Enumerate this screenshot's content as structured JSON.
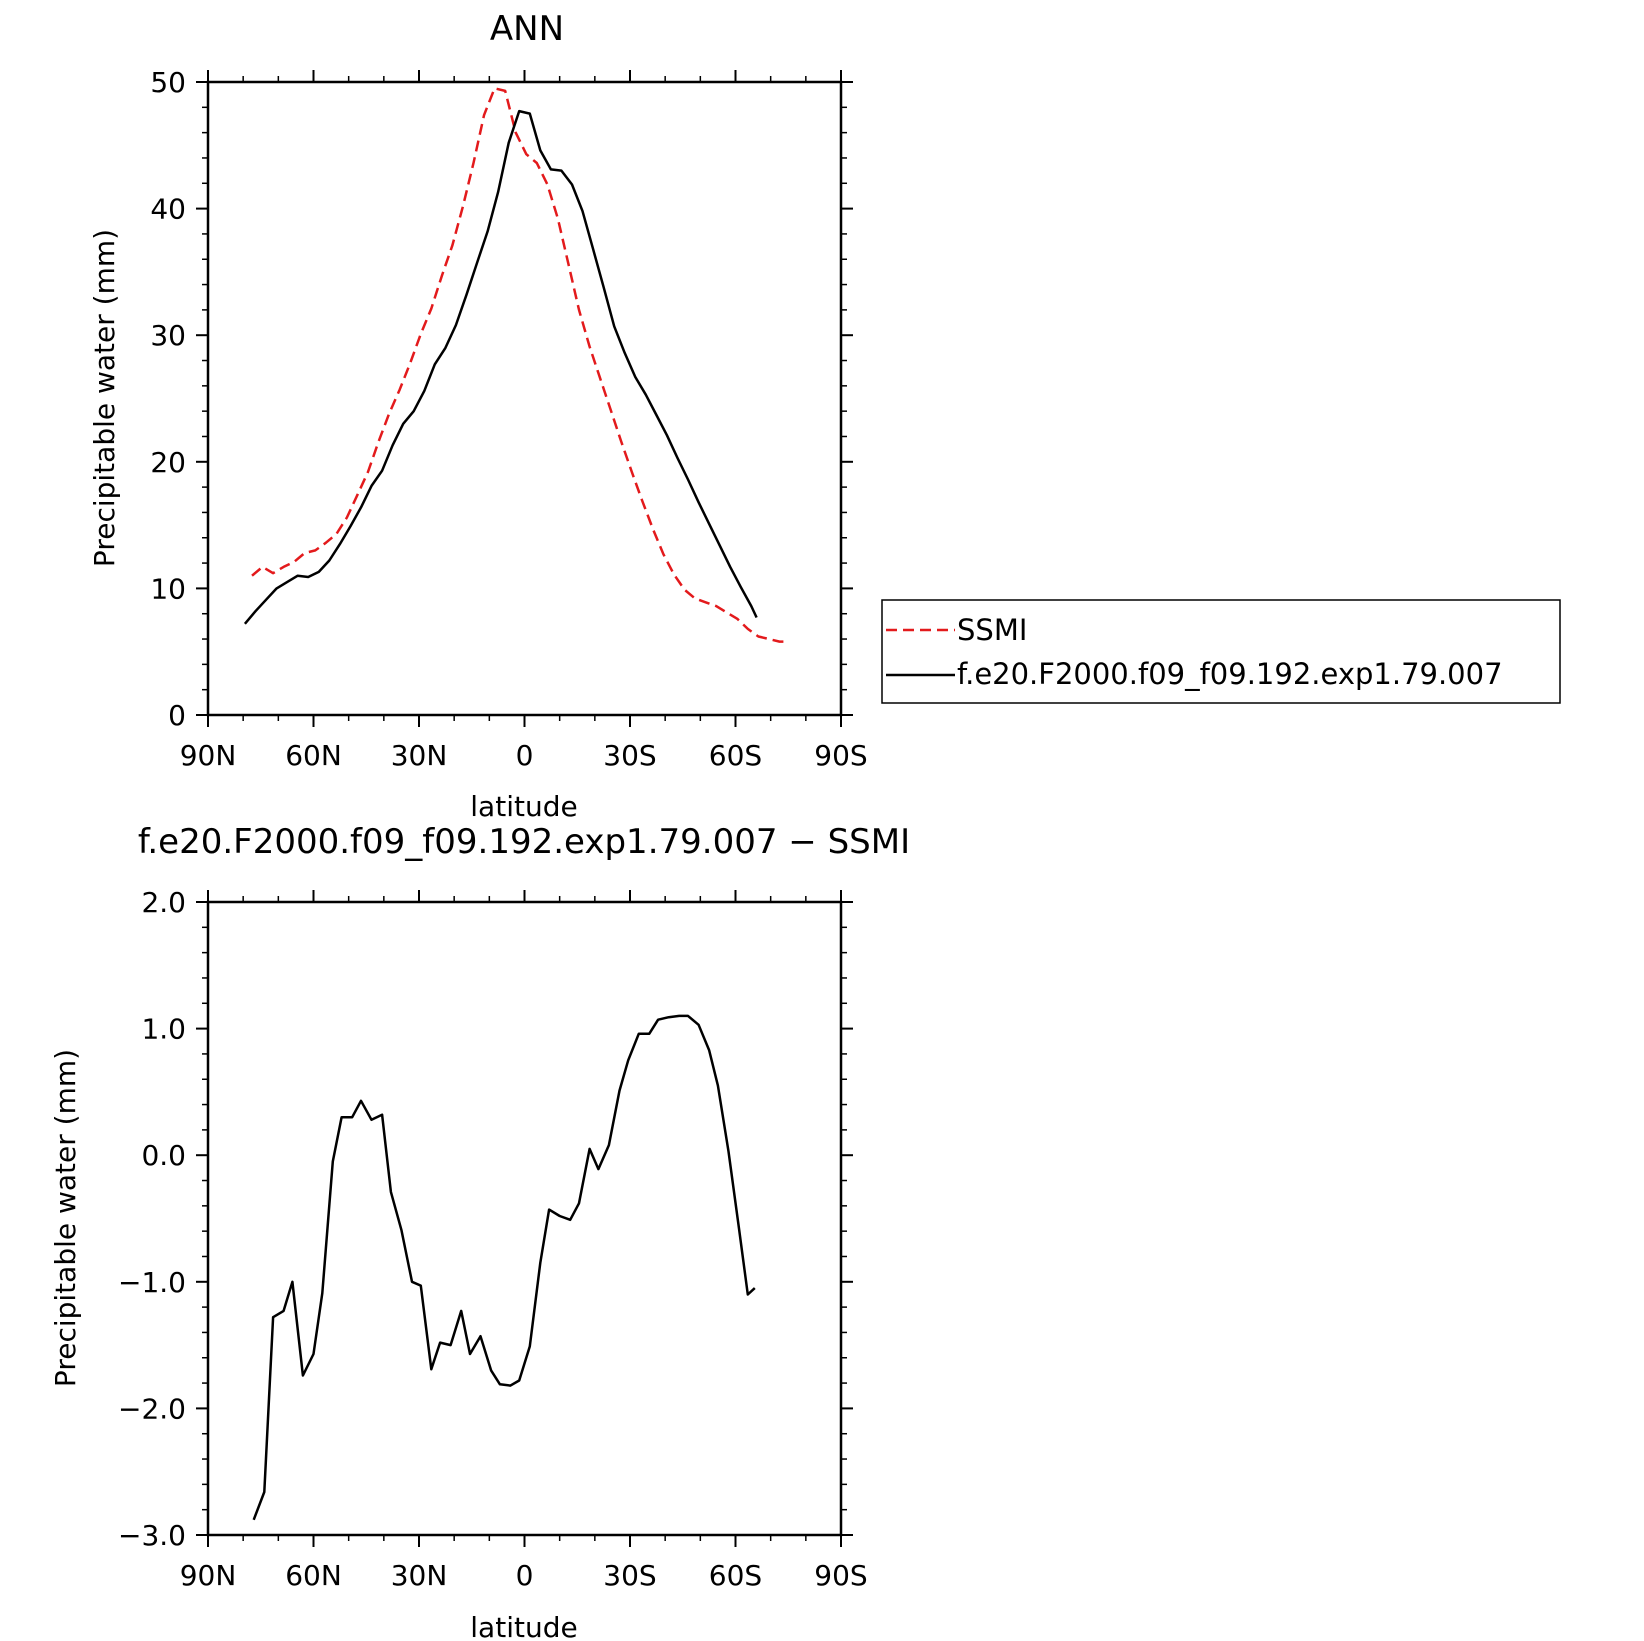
{
  "chart_data": [
    {
      "type": "line",
      "title": "ANN",
      "xlabel": "latitude",
      "ylabel": "Precipitable water (mm)",
      "xlim": [
        90,
        -90
      ],
      "ylim": [
        0,
        50
      ],
      "xticks": [
        90,
        60,
        30,
        0,
        -30,
        -60,
        -90
      ],
      "xtick_labels": [
        "90N",
        "60N",
        "30N",
        "0",
        "30S",
        "60S",
        "90S"
      ],
      "yticks": [
        0,
        10,
        20,
        30,
        40,
        50
      ],
      "ytick_labels": [
        "0",
        "10",
        "20",
        "30",
        "40",
        "50"
      ],
      "legend_position": "right",
      "series": [
        {
          "name": "SSMI",
          "color": "#e31a1c",
          "style": "dashed",
          "x": [
            77.5,
            74.5,
            71.5,
            68.5,
            65.5,
            62.5,
            59.5,
            56.5,
            53.5,
            50.5,
            47.5,
            44.5,
            41.5,
            38.5,
            35.5,
            32.5,
            29.5,
            26.5,
            23.5,
            20.5,
            17.5,
            14.5,
            11.5,
            8.5,
            5.5,
            2.5,
            -0.5,
            -3.5,
            -6.5,
            -9.5,
            -12.5,
            -15.5,
            -18.5,
            -21.5,
            -24.5,
            -27.5,
            -30.5,
            -33.5,
            -36.5,
            -39.5,
            -42.5,
            -45.5,
            -48.5,
            -51.5,
            -54.5,
            -57.5,
            -60.5,
            -63.5,
            -66.5,
            -69.5,
            -72.5,
            -74.5
          ],
          "y": [
            11.0,
            11.7,
            11.2,
            11.7,
            12.1,
            12.8,
            13.0,
            13.6,
            14.3,
            15.6,
            17.4,
            19.2,
            21.6,
            23.8,
            25.7,
            27.8,
            30.1,
            32.1,
            34.7,
            37.1,
            40.2,
            43.6,
            47.4,
            49.5,
            49.3,
            46.0,
            44.3,
            43.6,
            41.9,
            39.2,
            35.6,
            32.0,
            29.1,
            26.6,
            24.1,
            21.6,
            19.2,
            16.9,
            14.7,
            12.7,
            11.1,
            9.9,
            9.2,
            8.9,
            8.6,
            8.1,
            7.6,
            6.8,
            6.2,
            6.0,
            5.8,
            5.8
          ]
        },
        {
          "name": "f.e20.F2000.f09_f09.192.exp1.79.007",
          "color": "#000000",
          "style": "solid",
          "x": [
            79.5,
            76.5,
            73.5,
            70.5,
            67.5,
            64.5,
            61.5,
            58.5,
            55.5,
            52.5,
            49.5,
            46.5,
            43.5,
            40.5,
            37.5,
            34.5,
            31.5,
            28.5,
            25.5,
            22.5,
            19.5,
            16.5,
            13.5,
            10.5,
            7.5,
            4.5,
            1.5,
            -1.5,
            -4.5,
            -7.5,
            -10.5,
            -13.5,
            -16.5,
            -19.5,
            -22.5,
            -25.5,
            -28.5,
            -31.5,
            -34.5,
            -37.5,
            -40.5,
            -43.5,
            -46.5,
            -49.5,
            -52.5,
            -55.5,
            -58.5,
            -61.5,
            -64.5,
            -66.0
          ],
          "y": [
            7.2,
            8.2,
            9.1,
            10.0,
            10.5,
            11.0,
            10.9,
            11.3,
            12.2,
            13.5,
            14.9,
            16.4,
            18.1,
            19.3,
            21.3,
            23.0,
            24.0,
            25.6,
            27.7,
            29.0,
            30.8,
            33.2,
            35.7,
            38.2,
            41.3,
            45.2,
            47.7,
            47.5,
            44.6,
            43.1,
            43.0,
            41.9,
            39.8,
            36.8,
            33.8,
            30.7,
            28.6,
            26.7,
            25.3,
            23.7,
            22.1,
            20.3,
            18.6,
            16.8,
            15.1,
            13.4,
            11.7,
            10.1,
            8.6,
            7.7
          ]
        }
      ]
    },
    {
      "type": "line",
      "title": "f.e20.F2000.f09_f09.192.exp1.79.007 − SSMI",
      "xlabel": "latitude",
      "ylabel": "Precipitable water (mm)",
      "xlim": [
        90,
        -90
      ],
      "ylim": [
        -3.0,
        2.0
      ],
      "xticks": [
        90,
        60,
        30,
        0,
        -30,
        -60,
        -90
      ],
      "xtick_labels": [
        "90N",
        "60N",
        "30N",
        "0",
        "30S",
        "60S",
        "90S"
      ],
      "yticks": [
        -3.0,
        -2.0,
        -1.0,
        0.0,
        1.0,
        2.0
      ],
      "ytick_labels": [
        "−3.0",
        "−2.0",
        "−1.0",
        "0.0",
        "1.0",
        "2.0"
      ],
      "series": [
        {
          "color": "#000000",
          "style": "solid",
          "x": [
            77.0,
            74.0,
            71.5,
            68.5,
            66.0,
            63.0,
            60.0,
            57.5,
            54.5,
            52.0,
            49.0,
            46.5,
            43.5,
            40.5,
            38.0,
            35.0,
            32.0,
            29.5,
            26.5,
            24.0,
            21.0,
            18.0,
            15.5,
            12.5,
            9.5,
            7.0,
            4.0,
            1.5,
            -1.5,
            -4.5,
            -7.0,
            -10.0,
            -13.0,
            -15.5,
            -18.5,
            -21.0,
            -24.0,
            -27.0,
            -29.5,
            -32.5,
            -35.5,
            -38.0,
            -41.0,
            -44.0,
            -46.5,
            -49.5,
            -52.5,
            -55.0,
            -58.0,
            -61.0,
            -63.5,
            -65.5
          ],
          "y": [
            -2.88,
            -2.66,
            -1.28,
            -1.23,
            -1.0,
            -1.74,
            -1.57,
            -1.09,
            -0.05,
            0.3,
            0.3,
            0.43,
            0.28,
            0.32,
            -0.29,
            -0.59,
            -1.0,
            -1.03,
            -1.69,
            -1.48,
            -1.5,
            -1.23,
            -1.57,
            -1.43,
            -1.7,
            -1.81,
            -1.82,
            -1.78,
            -1.51,
            -0.85,
            -0.43,
            -0.48,
            -0.51,
            -0.38,
            0.05,
            -0.11,
            0.08,
            0.51,
            0.75,
            0.96,
            0.96,
            1.07,
            1.09,
            1.1,
            1.1,
            1.03,
            0.83,
            0.55,
            0.03,
            -0.58,
            -1.1,
            -1.05
          ]
        }
      ]
    }
  ]
}
